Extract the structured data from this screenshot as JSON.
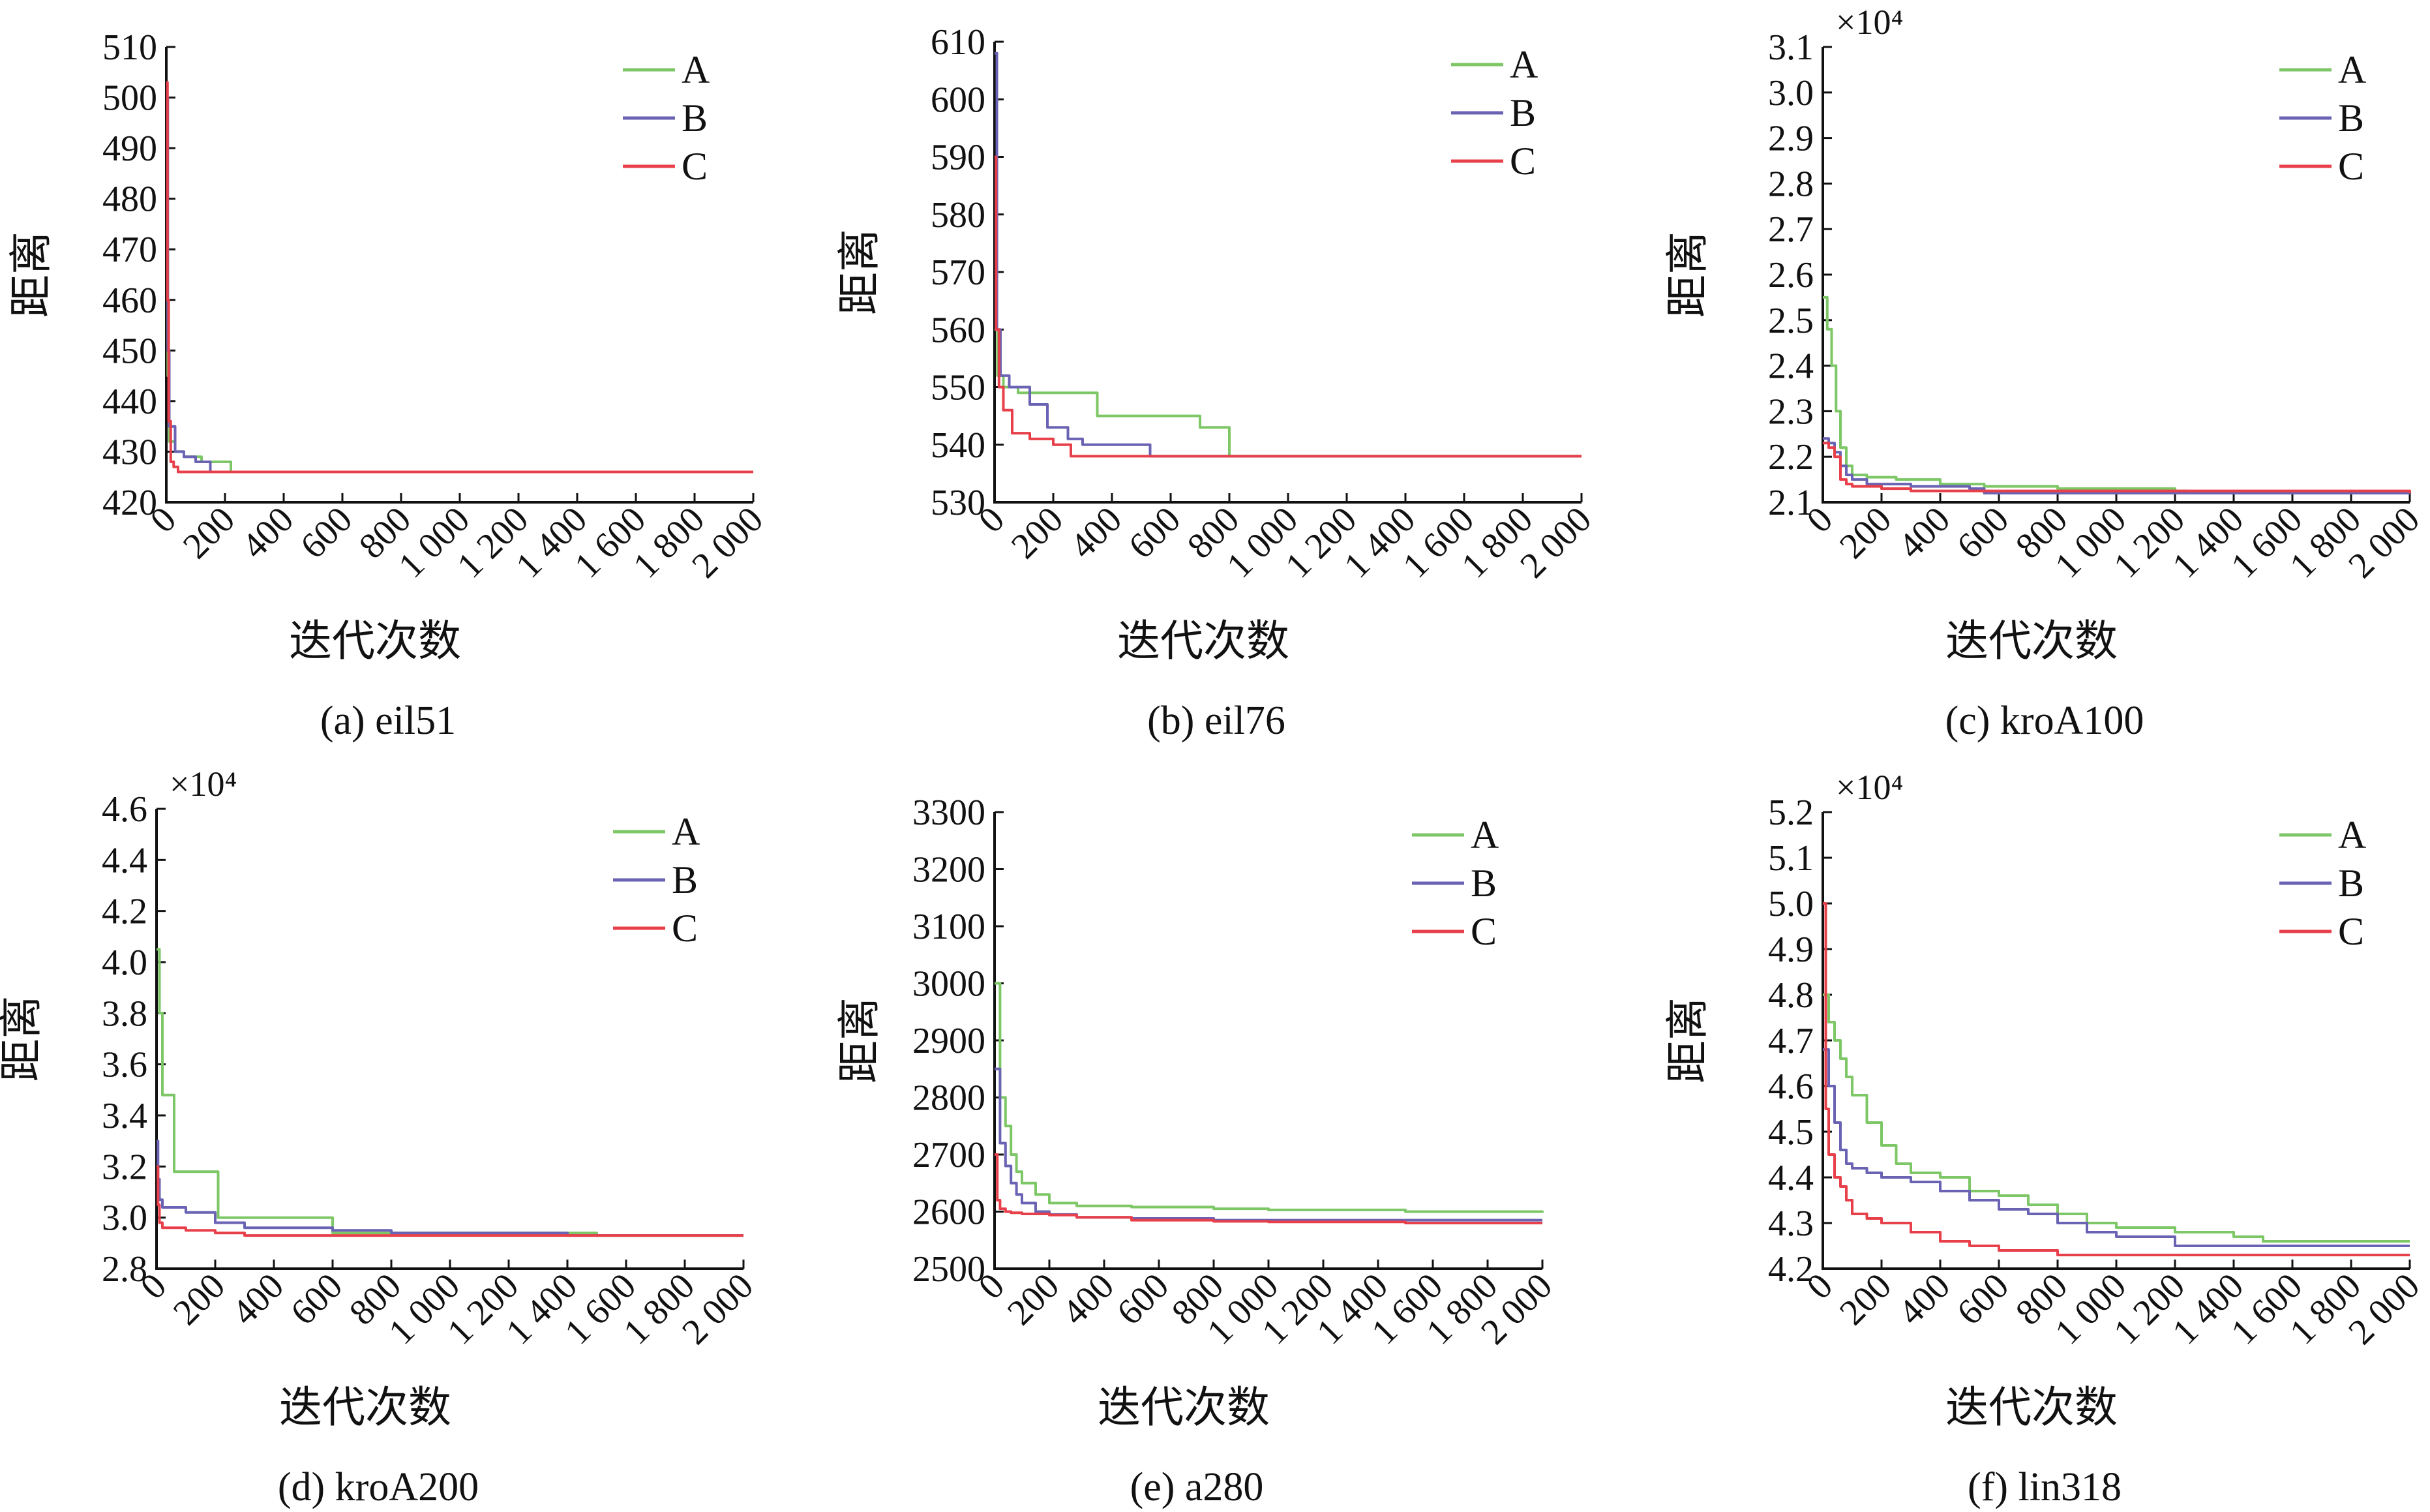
{
  "colors": {
    "A": "#7dc767",
    "B": "#6a63b3",
    "C": "#e8404a"
  },
  "chart_data": [
    {
      "type": "line",
      "caption": "(a) eil51",
      "xlabel": "迭代次数",
      "ylabel": "距离",
      "exponent": "",
      "xlim": [
        0,
        2000
      ],
      "ylim": [
        420,
        510
      ],
      "xticks": [
        0,
        200,
        400,
        600,
        800,
        1000,
        1200,
        1400,
        1600,
        1800,
        2000
      ],
      "xtick_labels": [
        "0",
        "200",
        "400",
        "600",
        "800",
        "1 000",
        "1 200",
        "1 400",
        "1 600",
        "1 800",
        "2 000"
      ],
      "yticks": [
        420,
        430,
        440,
        450,
        460,
        470,
        480,
        490,
        500,
        510
      ],
      "ytick_labels": [
        "420",
        "430",
        "440",
        "450",
        "460",
        "470",
        "480",
        "490",
        "500",
        "510"
      ],
      "legend": "top-right",
      "series": [
        {
          "name": "A",
          "x": [
            0,
            5,
            10,
            30,
            60,
            120,
            220,
            2000
          ],
          "y": [
            470,
            445,
            432,
            430,
            429,
            428,
            426,
            426
          ]
        },
        {
          "name": "B",
          "x": [
            0,
            5,
            10,
            30,
            60,
            100,
            150,
            2000
          ],
          "y": [
            500,
            450,
            435,
            430,
            429,
            428,
            426,
            426
          ]
        },
        {
          "name": "C",
          "x": [
            0,
            4,
            8,
            15,
            25,
            40,
            2000
          ],
          "y": [
            503,
            460,
            436,
            428,
            427,
            426,
            426
          ]
        }
      ]
    },
    {
      "type": "line",
      "caption": "(b) eil76",
      "xlabel": "迭代次数",
      "ylabel": "距离",
      "exponent": "",
      "xlim": [
        0,
        2000
      ],
      "ylim": [
        530,
        610
      ],
      "xticks": [
        0,
        200,
        400,
        600,
        800,
        1000,
        1200,
        1400,
        1600,
        1800,
        2000
      ],
      "xtick_labels": [
        "0",
        "200",
        "400",
        "600",
        "800",
        "1 000",
        "1 200",
        "1 400",
        "1 600",
        "1 800",
        "2 000"
      ],
      "yticks": [
        530,
        540,
        550,
        560,
        570,
        580,
        590,
        600,
        610
      ],
      "ytick_labels": [
        "530",
        "540",
        "550",
        "560",
        "570",
        "580",
        "590",
        "600",
        "610"
      ],
      "legend": "top-right",
      "series": [
        {
          "name": "A",
          "x": [
            0,
            10,
            30,
            80,
            200,
            350,
            700,
            800,
            2000
          ],
          "y": [
            560,
            552,
            550,
            549,
            549,
            545,
            543,
            538,
            538
          ]
        },
        {
          "name": "B",
          "x": [
            0,
            8,
            20,
            50,
            120,
            180,
            250,
            300,
            400,
            530,
            2000
          ],
          "y": [
            608,
            560,
            552,
            550,
            547,
            543,
            541,
            540,
            540,
            538,
            538
          ]
        },
        {
          "name": "C",
          "x": [
            0,
            5,
            15,
            30,
            60,
            120,
            200,
            260,
            400,
            2000
          ],
          "y": [
            590,
            560,
            550,
            546,
            542,
            541,
            540,
            538,
            538,
            538
          ]
        }
      ]
    },
    {
      "type": "line",
      "caption": "(c) kroA100",
      "xlabel": "迭代次数",
      "ylabel": "距离",
      "exponent": "×10⁴",
      "xlim": [
        0,
        2000
      ],
      "ylim": [
        2.1,
        3.1
      ],
      "xticks": [
        0,
        200,
        400,
        600,
        800,
        1000,
        1200,
        1400,
        1600,
        1800,
        2000
      ],
      "xtick_labels": [
        "0",
        "200",
        "400",
        "600",
        "800",
        "1 000",
        "1 200",
        "1 400",
        "1 600",
        "1 800",
        "2 000"
      ],
      "yticks": [
        2.1,
        2.2,
        2.3,
        2.4,
        2.5,
        2.6,
        2.7,
        2.8,
        2.9,
        3.0,
        3.1
      ],
      "ytick_labels": [
        "2.1",
        "2.2",
        "2.3",
        "2.4",
        "2.5",
        "2.6",
        "2.7",
        "2.8",
        "2.9",
        "3.0",
        "3.1"
      ],
      "legend": "top-right",
      "series": [
        {
          "name": "A",
          "x": [
            0,
            15,
            30,
            45,
            60,
            80,
            100,
            150,
            250,
            400,
            550,
            800,
            1200,
            1250
          ],
          "y": [
            2.55,
            2.48,
            2.4,
            2.3,
            2.22,
            2.18,
            2.16,
            2.155,
            2.15,
            2.14,
            2.135,
            2.13,
            2.125,
            2.125
          ]
        },
        {
          "name": "B",
          "x": [
            0,
            20,
            40,
            60,
            80,
            100,
            150,
            300,
            500,
            550,
            800,
            1200,
            2000
          ],
          "y": [
            2.24,
            2.23,
            2.21,
            2.18,
            2.16,
            2.15,
            2.14,
            2.135,
            2.13,
            2.12,
            2.12,
            2.12,
            2.12
          ]
        },
        {
          "name": "C",
          "x": [
            0,
            20,
            40,
            60,
            80,
            100,
            200,
            300,
            2000
          ],
          "y": [
            2.23,
            2.22,
            2.2,
            2.15,
            2.14,
            2.135,
            2.13,
            2.125,
            2.12
          ]
        }
      ]
    },
    {
      "type": "line",
      "caption": "(d) kroA200",
      "xlabel": "迭代次数",
      "ylabel": "距离",
      "exponent": "×10⁴",
      "xlim": [
        0,
        2000
      ],
      "ylim": [
        2.8,
        4.6
      ],
      "xticks": [
        0,
        200,
        400,
        600,
        800,
        1000,
        1200,
        1400,
        1600,
        1800,
        2000
      ],
      "xtick_labels": [
        "0",
        "200",
        "400",
        "600",
        "800",
        "1 000",
        "1 200",
        "1 400",
        "1 600",
        "1 800",
        "2 000"
      ],
      "yticks": [
        2.8,
        3.0,
        3.2,
        3.4,
        3.6,
        3.8,
        4.0,
        4.2,
        4.4,
        4.6
      ],
      "ytick_labels": [
        "2.8",
        "3.0",
        "3.2",
        "3.4",
        "3.6",
        "3.8",
        "4.0",
        "4.2",
        "4.4",
        "4.6"
      ],
      "legend": "top-right",
      "series": [
        {
          "name": "A",
          "x": [
            0,
            10,
            20,
            50,
            60,
            200,
            210,
            550,
            600,
            1450,
            1500,
            2000
          ],
          "y": [
            4.05,
            3.8,
            3.48,
            3.48,
            3.18,
            3.18,
            3.0,
            3.0,
            2.94,
            2.94,
            2.93,
            2.93
          ]
        },
        {
          "name": "B",
          "x": [
            0,
            5,
            10,
            20,
            100,
            200,
            300,
            600,
            800,
            1400,
            2000
          ],
          "y": [
            3.3,
            3.15,
            3.07,
            3.04,
            3.02,
            2.98,
            2.96,
            2.95,
            2.94,
            2.93,
            2.93
          ]
        },
        {
          "name": "C",
          "x": [
            0,
            5,
            10,
            20,
            100,
            200,
            300,
            500,
            2000
          ],
          "y": [
            3.2,
            3.05,
            2.98,
            2.96,
            2.95,
            2.94,
            2.93,
            2.93,
            2.93
          ]
        }
      ]
    },
    {
      "type": "line",
      "caption": "(e) a280",
      "xlabel": "迭代次数",
      "ylabel": "距离",
      "exponent": "",
      "xlim": [
        0,
        2000
      ],
      "ylim": [
        2500,
        3300
      ],
      "xticks": [
        0,
        200,
        400,
        600,
        800,
        1000,
        1200,
        1400,
        1600,
        1800,
        2000
      ],
      "xtick_labels": [
        "0",
        "200",
        "400",
        "600",
        "800",
        "1 000",
        "1 200",
        "1 400",
        "1 600",
        "1 800",
        "2 000"
      ],
      "yticks": [
        2500,
        2600,
        2700,
        2800,
        2900,
        3000,
        3100,
        3200,
        3300
      ],
      "ytick_labels": [
        "2500",
        "2600",
        "2700",
        "2800",
        "2900",
        "3000",
        "3100",
        "3200",
        "3300"
      ],
      "legend": "top-right",
      "series": [
        {
          "name": "A",
          "x": [
            0,
            20,
            40,
            60,
            80,
            100,
            150,
            200,
            300,
            500,
            800,
            1000,
            1500,
            2000
          ],
          "y": [
            3000,
            2800,
            2750,
            2700,
            2670,
            2650,
            2630,
            2615,
            2610,
            2608,
            2605,
            2603,
            2600,
            2598
          ]
        },
        {
          "name": "B",
          "x": [
            0,
            20,
            40,
            60,
            80,
            100,
            150,
            200,
            300,
            500,
            800,
            1000,
            1500,
            2000
          ],
          "y": [
            2850,
            2720,
            2680,
            2650,
            2630,
            2615,
            2600,
            2595,
            2590,
            2588,
            2585,
            2585,
            2585,
            2585
          ]
        },
        {
          "name": "C",
          "x": [
            0,
            10,
            20,
            40,
            60,
            100,
            200,
            300,
            500,
            800,
            1000,
            1500,
            2000
          ],
          "y": [
            2700,
            2620,
            2605,
            2600,
            2598,
            2596,
            2594,
            2590,
            2585,
            2583,
            2582,
            2580,
            2580
          ]
        }
      ]
    },
    {
      "type": "line",
      "caption": "(f) lin318",
      "xlabel": "迭代次数",
      "ylabel": "距离",
      "exponent": "×10⁴",
      "xlim": [
        0,
        2000
      ],
      "ylim": [
        4.2,
        5.2
      ],
      "xticks": [
        0,
        200,
        400,
        600,
        800,
        1000,
        1200,
        1400,
        1600,
        1800,
        2000
      ],
      "xtick_labels": [
        "0",
        "200",
        "400",
        "600",
        "800",
        "1 000",
        "1 200",
        "1 400",
        "1 600",
        "1 800",
        "2 000"
      ],
      "yticks": [
        4.2,
        4.3,
        4.4,
        4.5,
        4.6,
        4.7,
        4.8,
        4.9,
        5.0,
        5.1,
        5.2
      ],
      "ytick_labels": [
        "4.2",
        "4.3",
        "4.4",
        "4.5",
        "4.6",
        "4.7",
        "4.8",
        "4.9",
        "5.0",
        "5.1",
        "5.2"
      ],
      "legend": "top-right",
      "series": [
        {
          "name": "A",
          "x": [
            0,
            20,
            40,
            60,
            80,
            100,
            150,
            200,
            250,
            300,
            400,
            500,
            600,
            700,
            800,
            900,
            1000,
            1200,
            1400,
            1500,
            2000
          ],
          "y": [
            4.8,
            4.74,
            4.7,
            4.66,
            4.62,
            4.58,
            4.52,
            4.47,
            4.43,
            4.41,
            4.4,
            4.37,
            4.36,
            4.34,
            4.32,
            4.3,
            4.29,
            4.28,
            4.27,
            4.26,
            4.26
          ]
        },
        {
          "name": "B",
          "x": [
            0,
            20,
            40,
            60,
            80,
            100,
            150,
            200,
            300,
            400,
            500,
            600,
            700,
            800,
            900,
            1000,
            1200,
            1500,
            2000
          ],
          "y": [
            4.68,
            4.6,
            4.52,
            4.46,
            4.43,
            4.42,
            4.41,
            4.4,
            4.39,
            4.37,
            4.35,
            4.33,
            4.32,
            4.3,
            4.28,
            4.27,
            4.25,
            4.25,
            4.25
          ]
        },
        {
          "name": "C",
          "x": [
            0,
            10,
            20,
            40,
            60,
            80,
            100,
            150,
            200,
            300,
            400,
            500,
            600,
            700,
            800,
            1000,
            1200,
            1500,
            2000
          ],
          "y": [
            5.0,
            4.55,
            4.45,
            4.4,
            4.38,
            4.35,
            4.32,
            4.31,
            4.3,
            4.28,
            4.26,
            4.25,
            4.24,
            4.24,
            4.23,
            4.23,
            4.23,
            4.23,
            4.23
          ]
        }
      ]
    }
  ]
}
